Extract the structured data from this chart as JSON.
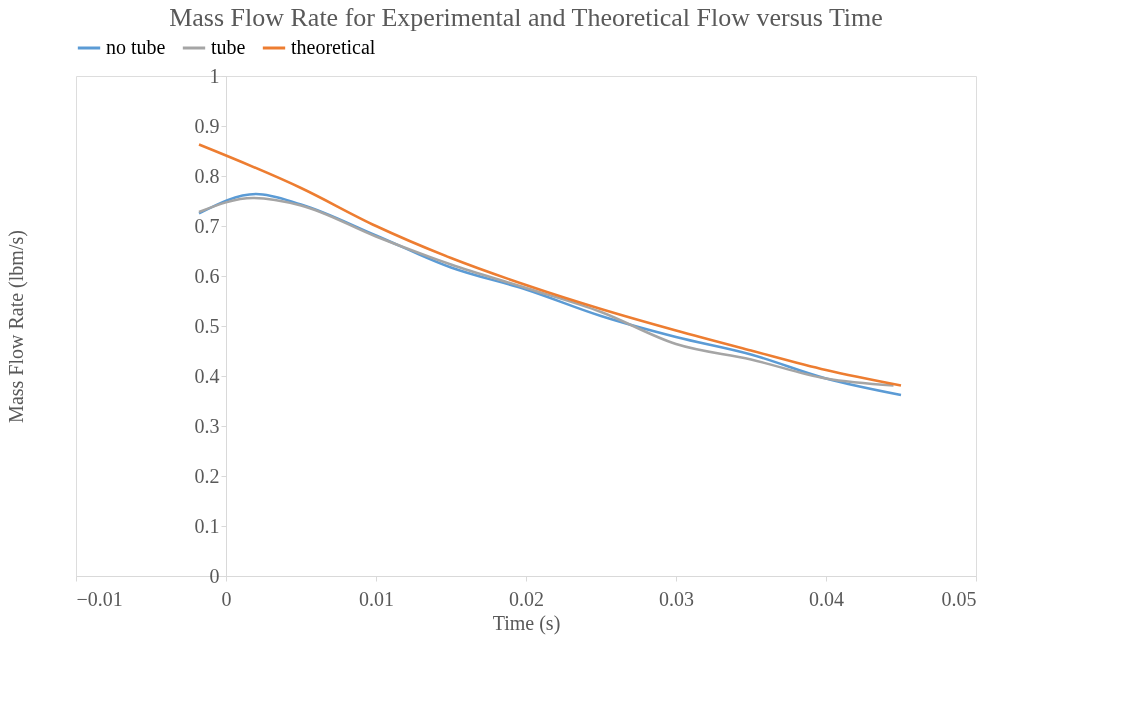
{
  "chart_data": {
    "type": "line",
    "title": "Mass Flow Rate for Experimental and Theoretical Flow versus Time",
    "xlabel": "Time (s)",
    "ylabel": "Mass Flow Rate (lbm/s)",
    "xlim": [
      -0.01,
      0.05
    ],
    "xticks": [
      -0.01,
      0,
      0.01,
      0.02,
      0.03,
      0.04,
      0.05
    ],
    "ylim": [
      0,
      1
    ],
    "yticks": [
      0,
      0.1,
      0.2,
      0.3,
      0.4,
      0.5,
      0.6,
      0.7,
      0.8,
      0.9,
      1
    ],
    "grid": false,
    "legend": "top",
    "marker": "none",
    "line_style": "solid",
    "series": [
      {
        "name": "no tube",
        "color": "#5b9bd5",
        "x": [
          -0.0018,
          0.002,
          0.005,
          0.01,
          0.015,
          0.02,
          0.025,
          0.03,
          0.035,
          0.04,
          0.045
        ],
        "values": [
          0.725,
          0.764,
          0.743,
          0.681,
          0.617,
          0.573,
          0.52,
          0.478,
          0.443,
          0.395,
          0.362
        ]
      },
      {
        "name": "tube",
        "color": "#a5a5a5",
        "x": [
          -0.0018,
          0.0018,
          0.005,
          0.01,
          0.015,
          0.02,
          0.025,
          0.03,
          0.035,
          0.04,
          0.0445
        ],
        "values": [
          0.728,
          0.756,
          0.741,
          0.679,
          0.623,
          0.576,
          0.528,
          0.464,
          0.433,
          0.395,
          0.381
        ]
      },
      {
        "name": "theoretical",
        "color": "#ed7d31",
        "x": [
          -0.0018,
          0.005,
          0.01,
          0.015,
          0.02,
          0.025,
          0.03,
          0.035,
          0.04,
          0.045
        ],
        "values": [
          0.863,
          0.776,
          0.7,
          0.636,
          0.582,
          0.534,
          0.491,
          0.451,
          0.412,
          0.381
        ]
      }
    ]
  }
}
